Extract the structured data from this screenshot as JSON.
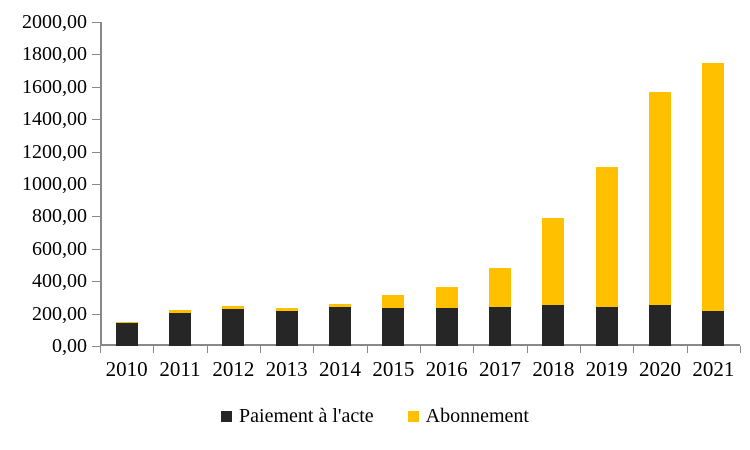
{
  "page": {
    "background": "#FFFFFF",
    "axis_color": "#898989",
    "text_color": "#000000"
  },
  "chart_data": {
    "type": "bar",
    "stacked": true,
    "title": "",
    "xlabel": "",
    "ylabel": "",
    "categories": [
      "2010",
      "2011",
      "2012",
      "2013",
      "2014",
      "2015",
      "2016",
      "2017",
      "2018",
      "2019",
      "2020",
      "2021"
    ],
    "series": [
      {
        "name": "Paiement à l'acte",
        "color": "#262626",
        "values": [
          140,
          205,
          228,
          215,
          240,
          232,
          232,
          238,
          255,
          238,
          255,
          215
        ]
      },
      {
        "name": "Abonnement",
        "color": "#FFC000",
        "values": [
          10,
          15,
          20,
          22,
          18,
          85,
          133,
          245,
          535,
          865,
          1310,
          1530
        ]
      }
    ],
    "ylim": [
      0,
      2000
    ],
    "ytick_step": 200,
    "yticks": [
      {
        "value": 2000,
        "label": "2000,00"
      },
      {
        "value": 1800,
        "label": "1800,00"
      },
      {
        "value": 1600,
        "label": "1600,00"
      },
      {
        "value": 1400,
        "label": "1400,00"
      },
      {
        "value": 1200,
        "label": "1200,00"
      },
      {
        "value": 1000,
        "label": "1000,00"
      },
      {
        "value": 800,
        "label": "800,00"
      },
      {
        "value": 600,
        "label": "600,00"
      },
      {
        "value": 400,
        "label": "400,00"
      },
      {
        "value": 200,
        "label": "200,00"
      },
      {
        "value": 0,
        "label": "0,00"
      }
    ],
    "grid": false,
    "legend_position": "bottom"
  }
}
